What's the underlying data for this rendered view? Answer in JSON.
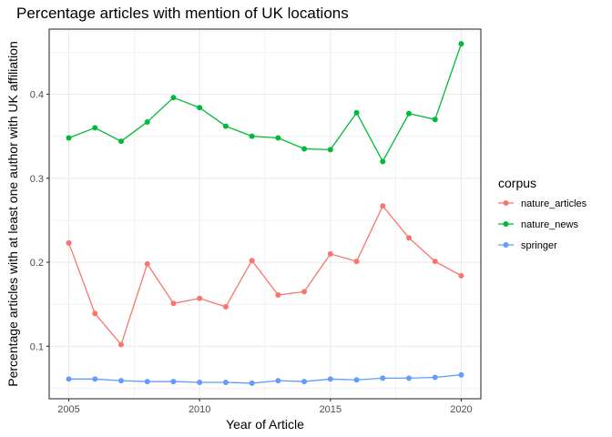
{
  "chart_data": {
    "type": "line",
    "title": "Percentage articles with mention of UK locations",
    "xlabel": "Year of Article",
    "ylabel": "Percentage articles with at least one author with UK affiliation",
    "x": [
      2005,
      2006,
      2007,
      2008,
      2009,
      2010,
      2011,
      2012,
      2013,
      2014,
      2015,
      2016,
      2017,
      2018,
      2019,
      2020
    ],
    "xticks": [
      2005,
      2010,
      2015,
      2020
    ],
    "xtick_labels": [
      "2005",
      "2010",
      "2015",
      "2020"
    ],
    "yticks": [
      0.1,
      0.2,
      0.3,
      0.4
    ],
    "ytick_labels": [
      "0.1",
      "0.2",
      "0.3",
      "0.4"
    ],
    "xlim": [
      2004.25,
      2020.75
    ],
    "ylim": [
      0.0375,
      0.4775
    ],
    "grid": true,
    "legend": {
      "title": "corpus",
      "position": "right"
    },
    "series": [
      {
        "name": "nature_articles",
        "color": "#F8766D",
        "values": [
          0.223,
          0.139,
          0.102,
          0.198,
          0.151,
          0.157,
          0.147,
          0.202,
          0.161,
          0.165,
          0.21,
          0.201,
          0.267,
          0.229,
          0.201,
          0.184
        ]
      },
      {
        "name": "nature_news",
        "color": "#00BA38",
        "values": [
          0.348,
          0.36,
          0.344,
          0.367,
          0.396,
          0.384,
          0.362,
          0.35,
          0.348,
          0.335,
          0.334,
          0.378,
          0.32,
          0.377,
          0.37,
          0.46
        ]
      },
      {
        "name": "springer",
        "color": "#619CFF",
        "values": [
          0.061,
          0.061,
          0.059,
          0.058,
          0.058,
          0.057,
          0.057,
          0.056,
          0.059,
          0.058,
          0.061,
          0.06,
          0.062,
          0.062,
          0.063,
          0.066
        ]
      }
    ]
  }
}
